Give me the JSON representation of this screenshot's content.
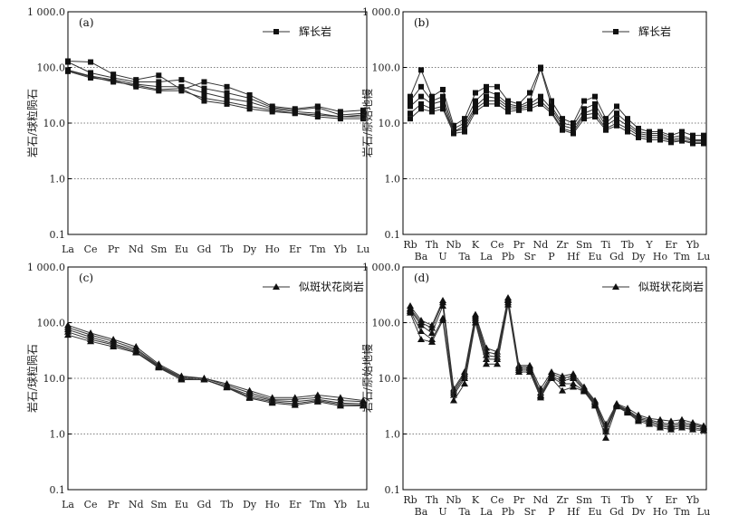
{
  "chart_data": [
    {
      "id": "a",
      "type": "line",
      "panel_label": "(a)",
      "ylabel": "岩石/球粒陨石",
      "yscale": "log",
      "ylim": [
        0.1,
        1000
      ],
      "ytick_labels": [
        "1 000.0",
        "100.0",
        "10.0",
        "1.0",
        "0.1"
      ],
      "grid": "y-major",
      "legend": {
        "label": "辉长岩",
        "marker": "square",
        "placement": "top-right"
      },
      "marker": "square",
      "categories": [
        "La",
        "Ce",
        "Pr",
        "Nd",
        "Sm",
        "Eu",
        "Gd",
        "Tb",
        "Dy",
        "Ho",
        "Er",
        "Tm",
        "Yb",
        "Lu"
      ],
      "series": [
        {
          "values": [
            130,
            125,
            75,
            60,
            72,
            40,
            55,
            45,
            32,
            20,
            18,
            20,
            16,
            17
          ]
        },
        {
          "values": [
            125,
            80,
            65,
            55,
            55,
            60,
            42,
            35,
            28,
            19,
            17,
            19,
            14,
            15
          ]
        },
        {
          "values": [
            90,
            70,
            60,
            50,
            45,
            45,
            35,
            28,
            24,
            18,
            16,
            15,
            13,
            14
          ]
        },
        {
          "values": [
            85,
            65,
            58,
            45,
            38,
            38,
            28,
            24,
            20,
            17,
            15,
            14,
            13,
            13
          ]
        },
        {
          "values": [
            88,
            68,
            55,
            48,
            40,
            42,
            25,
            22,
            18,
            16,
            15,
            13,
            12,
            12
          ]
        }
      ]
    },
    {
      "id": "b",
      "type": "line",
      "panel_label": "(b)",
      "ylabel": "岩石/原始地幔",
      "yscale": "log",
      "ylim": [
        0.1,
        1000
      ],
      "ytick_labels": [
        "1 000.0",
        "100.0",
        "10.0",
        "1.0",
        "0.1"
      ],
      "grid": "y-major",
      "legend": {
        "label": "辉长岩",
        "marker": "square",
        "placement": "top-right"
      },
      "marker": "square",
      "categories": [
        "Rb",
        "Ba",
        "Th",
        "U",
        "Nb",
        "Ta",
        "K",
        "La",
        "Ce",
        "Pb",
        "Pr",
        "Sr",
        "Nd",
        "P",
        "Zr",
        "Hf",
        "Sm",
        "Eu",
        "Ti",
        "Gd",
        "Tb",
        "Dy",
        "Y",
        "Ho",
        "Er",
        "Tm",
        "Yb",
        "Lu"
      ],
      "series": [
        {
          "values": [
            30,
            90,
            30,
            40,
            9,
            12,
            35,
            45,
            45,
            25,
            22,
            35,
            100,
            25,
            12,
            10,
            25,
            30,
            12,
            20,
            12,
            8,
            7,
            7,
            6,
            7,
            6,
            6
          ]
        },
        {
          "values": [
            25,
            45,
            25,
            30,
            8,
            10,
            25,
            38,
            32,
            22,
            20,
            25,
            95,
            20,
            10,
            9,
            18,
            22,
            10,
            15,
            10,
            7,
            6.5,
            6.5,
            5.5,
            6,
            5,
            5
          ]
        },
        {
          "values": [
            20,
            30,
            22,
            25,
            7,
            9,
            20,
            30,
            28,
            20,
            19,
            22,
            30,
            18,
            9,
            8,
            15,
            18,
            9,
            12,
            9,
            6.5,
            6,
            6,
            5,
            5.5,
            4.8,
            4.8
          ]
        },
        {
          "values": [
            15,
            22,
            18,
            20,
            7,
            8,
            18,
            25,
            25,
            18,
            18,
            20,
            25,
            16,
            8,
            7,
            14,
            15,
            8,
            10,
            8,
            6,
            5.5,
            5.5,
            4.8,
            5,
            4.5,
            4.5
          ]
        },
        {
          "values": [
            12,
            18,
            16,
            18,
            6.5,
            7,
            16,
            22,
            22,
            16,
            17,
            18,
            22,
            15,
            7.5,
            6.5,
            12,
            13,
            7.5,
            9,
            7,
            5.5,
            5,
            5,
            4.5,
            4.8,
            4.3,
            4.3
          ]
        }
      ]
    },
    {
      "id": "c",
      "type": "line",
      "panel_label": "(c)",
      "ylabel": "岩石/球粒陨石",
      "yscale": "log",
      "ylim": [
        0.1,
        1000
      ],
      "ytick_labels": [
        "1 000.0",
        "100.0",
        "10.0",
        "1.0",
        "0.1"
      ],
      "grid": "y-major",
      "legend": {
        "label": "似斑状花岗岩",
        "marker": "triangle",
        "placement": "top-right"
      },
      "marker": "triangle",
      "categories": [
        "La",
        "Ce",
        "Pr",
        "Nd",
        "Sm",
        "Eu",
        "Gd",
        "Tb",
        "Dy",
        "Ho",
        "Er",
        "Tm",
        "Yb",
        "Lu"
      ],
      "series": [
        {
          "values": [
            90,
            65,
            50,
            37,
            18,
            11,
            10,
            8,
            6,
            4.5,
            4.5,
            5,
            4.5,
            4
          ]
        },
        {
          "values": [
            82,
            60,
            46,
            34,
            17,
            10.5,
            10,
            7.5,
            5.5,
            4.2,
            4.2,
            4.5,
            4,
            3.8
          ]
        },
        {
          "values": [
            75,
            55,
            42,
            32,
            16.5,
            10,
            9.5,
            7,
            5,
            4,
            3.8,
            4.2,
            3.6,
            3.5
          ]
        },
        {
          "values": [
            68,
            50,
            40,
            30,
            16,
            9.5,
            9.5,
            7,
            4.6,
            3.8,
            3.5,
            4,
            3.4,
            3.3
          ]
        },
        {
          "values": [
            60,
            46,
            37,
            29,
            15.5,
            9.5,
            9.5,
            6.8,
            4.4,
            3.6,
            3.3,
            3.8,
            3.2,
            3.2
          ]
        }
      ]
    },
    {
      "id": "d",
      "type": "line",
      "panel_label": "(d)",
      "ylabel": "岩石/原始地幔",
      "yscale": "log",
      "ylim": [
        0.1,
        1000
      ],
      "ytick_labels": [
        "1 000.0",
        "100.0",
        "10.0",
        "1.0",
        "0.1"
      ],
      "grid": "y-major",
      "legend": {
        "label": "似斑状花岗岩",
        "marker": "triangle",
        "placement": "top-right"
      },
      "marker": "triangle",
      "categories": [
        "Rb",
        "Ba",
        "Th",
        "U",
        "Nb",
        "Ta",
        "K",
        "La",
        "Ce",
        "Pb",
        "Pr",
        "Sr",
        "Nd",
        "P",
        "Zr",
        "Hf",
        "Sm",
        "Eu",
        "Ti",
        "Gd",
        "Tb",
        "Dy",
        "Y",
        "Ho",
        "Er",
        "Tm",
        "Yb",
        "Lu"
      ],
      "series": [
        {
          "values": [
            200,
            110,
            90,
            250,
            6.5,
            13,
            140,
            35,
            30,
            280,
            17,
            17,
            6.5,
            13,
            11,
            12,
            7,
            4,
            1.5,
            3.5,
            2.9,
            2.2,
            1.9,
            1.8,
            1.7,
            1.8,
            1.6,
            1.4
          ]
        },
        {
          "values": [
            180,
            100,
            80,
            230,
            6,
            12,
            130,
            30,
            27,
            260,
            16,
            16,
            5.5,
            12,
            10,
            11,
            6.5,
            3.8,
            1.3,
            3.4,
            2.7,
            2,
            1.8,
            1.6,
            1.5,
            1.6,
            1.5,
            1.35
          ]
        },
        {
          "values": [
            170,
            90,
            65,
            200,
            5.5,
            11,
            120,
            26,
            24,
            250,
            15,
            15,
            5,
            11,
            9,
            10,
            6.2,
            3.6,
            1.2,
            3.3,
            2.6,
            1.9,
            1.7,
            1.5,
            1.4,
            1.5,
            1.4,
            1.3
          ]
        },
        {
          "values": [
            160,
            70,
            50,
            120,
            5,
            10,
            110,
            22,
            22,
            230,
            14,
            14,
            4.8,
            10.5,
            8,
            8,
            6,
            3.4,
            1.1,
            3.2,
            2.5,
            1.8,
            1.6,
            1.4,
            1.3,
            1.4,
            1.3,
            1.2
          ]
        },
        {
          "values": [
            150,
            50,
            45,
            110,
            4,
            8,
            100,
            18,
            18,
            210,
            13,
            13,
            4.5,
            10,
            6,
            7,
            5.8,
            3.2,
            0.85,
            3.1,
            2.4,
            1.7,
            1.5,
            1.3,
            1.2,
            1.3,
            1.2,
            1.15
          ]
        }
      ]
    }
  ]
}
